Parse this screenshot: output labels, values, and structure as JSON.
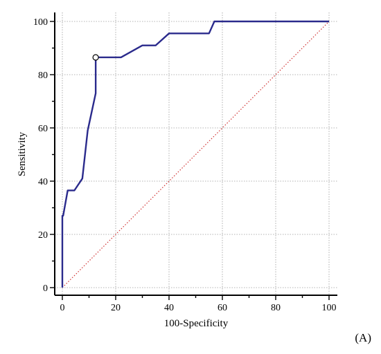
{
  "chart_data": {
    "type": "line",
    "xlabel": "100-Specificity",
    "ylabel": "Sensitivity",
    "xlim": [
      0,
      100
    ],
    "ylim": [
      0,
      100
    ],
    "xticks": [
      "0",
      "20",
      "40",
      "60",
      "80",
      "100"
    ],
    "yticks": [
      "0",
      "20",
      "40",
      "60",
      "80",
      "100"
    ],
    "grid": true,
    "panel_label": "(A)",
    "series": [
      {
        "style": "solid",
        "color": "#2a2a8c",
        "x": [
          0,
          0,
          0.3,
          2,
          4.5,
          7.5,
          9.5,
          12.5,
          12.5,
          22,
          30,
          35,
          40,
          55,
          57,
          60,
          80,
          100
        ],
        "y": [
          0,
          27,
          27,
          36.5,
          36.5,
          41,
          59,
          73,
          86.5,
          86.5,
          91,
          91,
          95.5,
          95.5,
          100,
          100,
          100,
          100
        ]
      },
      {
        "style": "dotted",
        "color": "#d03030",
        "x": [
          0,
          100
        ],
        "y": [
          0,
          100
        ]
      }
    ],
    "marker": {
      "x": 12.5,
      "y": 86.5,
      "shape": "open-circle"
    }
  }
}
